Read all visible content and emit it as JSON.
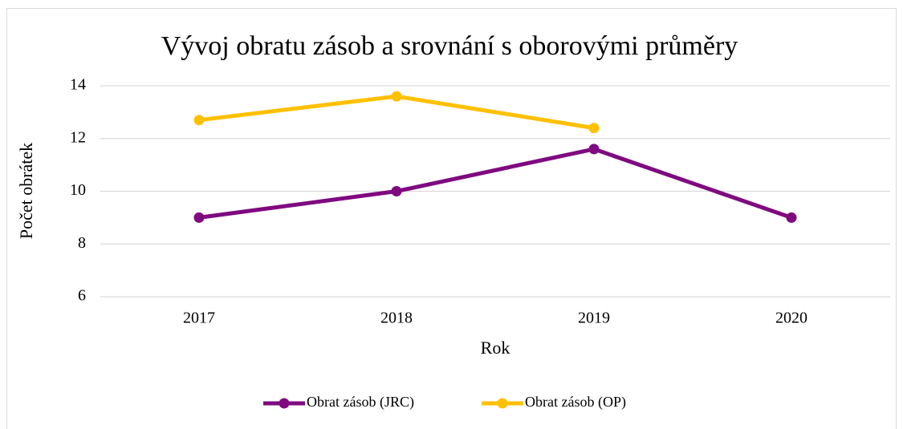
{
  "chart_data": {
    "type": "line",
    "title": "Vývoj obratu zásob a srovnání s oborovými průměry",
    "xlabel": "Rok",
    "ylabel": "Počet obrátek",
    "categories": [
      "2017",
      "2018",
      "2019",
      "2020"
    ],
    "series": [
      {
        "name": "Obrat zásob (JRC)",
        "color": "#7f0a80",
        "values": [
          9.0,
          10.0,
          11.6,
          9.0
        ]
      },
      {
        "name": "Obrat zásob (OP)",
        "color": "#ffc000",
        "values": [
          12.7,
          13.6,
          12.4,
          null
        ]
      }
    ],
    "ylim": [
      6,
      14
    ],
    "yticks": [
      6,
      8,
      10,
      12,
      14
    ],
    "grid": true,
    "legend": "bottom"
  }
}
